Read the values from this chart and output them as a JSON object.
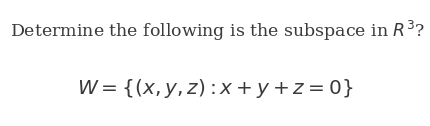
{
  "line1_normal": "Determine the following is the subspace in ",
  "line1_R": "R",
  "line1_sup": "3",
  "line1_q": "?",
  "line2_math": "$W =\\{(x,y,z){:}x+y+z=0\\}$",
  "bg_color": "#ffffff",
  "text_color": "#3a3a3a",
  "line1_fontsize": 12.5,
  "line2_fontsize": 14.5,
  "fig_width": 4.3,
  "fig_height": 1.26,
  "dpi": 100
}
